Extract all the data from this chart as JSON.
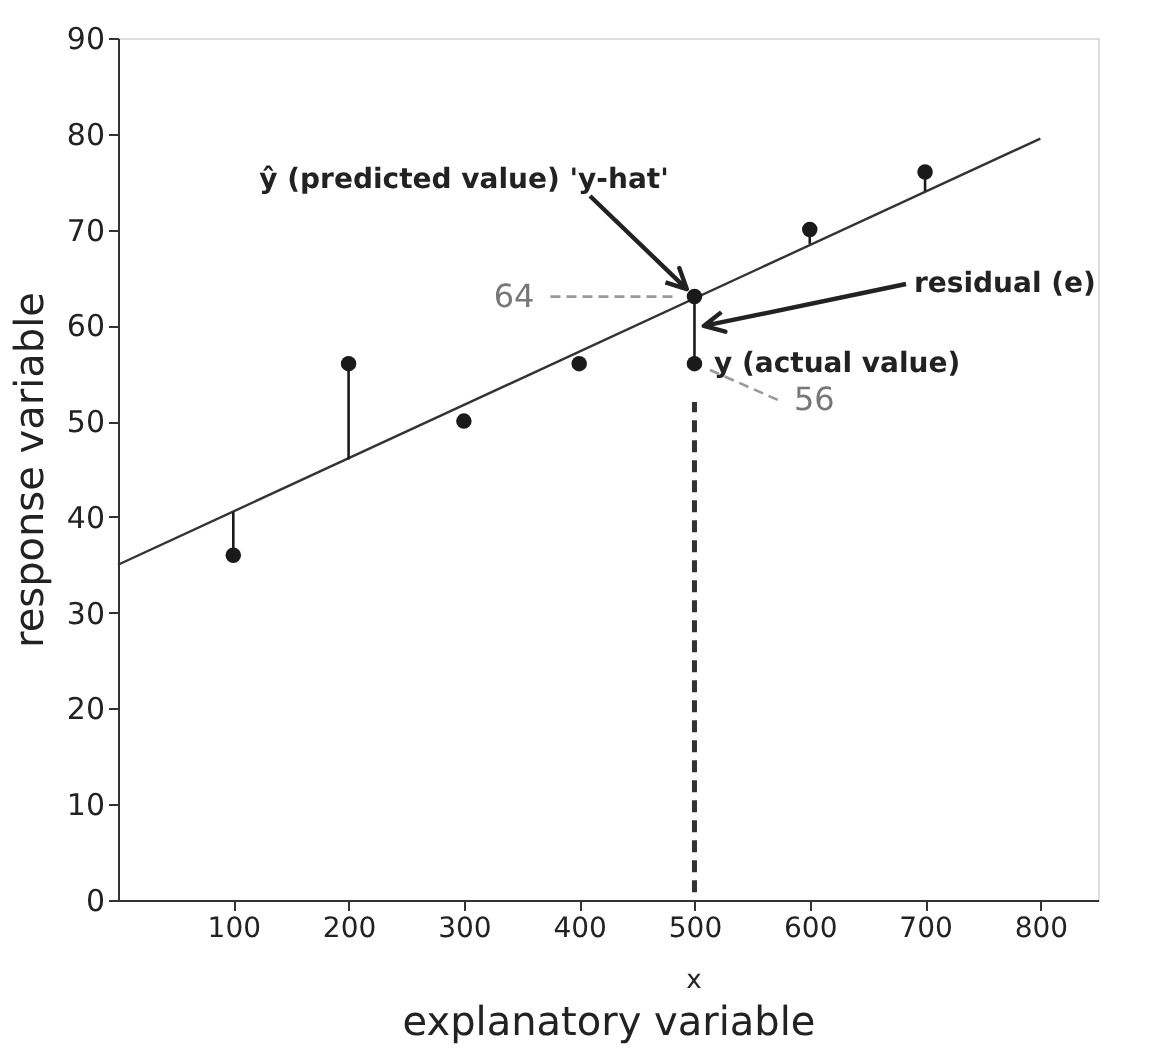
{
  "chart_data": {
    "type": "scatter",
    "xlabel": "explanatory variable",
    "ylabel": "response variable",
    "xlim": [
      0,
      850
    ],
    "ylim": [
      0,
      90
    ],
    "xticks": [
      100,
      200,
      300,
      400,
      500,
      600,
      700,
      800
    ],
    "yticks": [
      0,
      10,
      20,
      30,
      40,
      50,
      60,
      70,
      80,
      90
    ],
    "grid": false,
    "marker": "circle",
    "series": [
      {
        "type": "line",
        "color": "#333333",
        "x": [
          0,
          800
        ],
        "values": [
          35,
          79.5
        ],
        "marker": "none",
        "line_style": "solid"
      },
      {
        "color": "#1a1a1a",
        "x": [
          100,
          200,
          300,
          400,
          500,
          600,
          700
        ],
        "values": [
          36,
          56,
          50,
          56,
          56,
          70,
          76
        ],
        "errors": [
          [
            36,
            40.5
          ],
          [
            46,
            56
          ],
          null,
          null,
          [
            56,
            63
          ],
          [
            68.5,
            70
          ],
          [
            74,
            76
          ]
        ]
      },
      {
        "color": "#1a1a1a",
        "x": [
          500
        ],
        "values": [
          63
        ]
      }
    ],
    "ref_lines": [
      {
        "axis": "x",
        "value": 500,
        "line_style": "dashed",
        "color": "#333333"
      }
    ],
    "annotations": [
      "ŷ (predicted value) 'y-hat'",
      "residual (e)",
      "y (actual value)",
      {
        "text": "64",
        "x": 500,
        "y": 63
      },
      "56",
      "x"
    ]
  }
}
